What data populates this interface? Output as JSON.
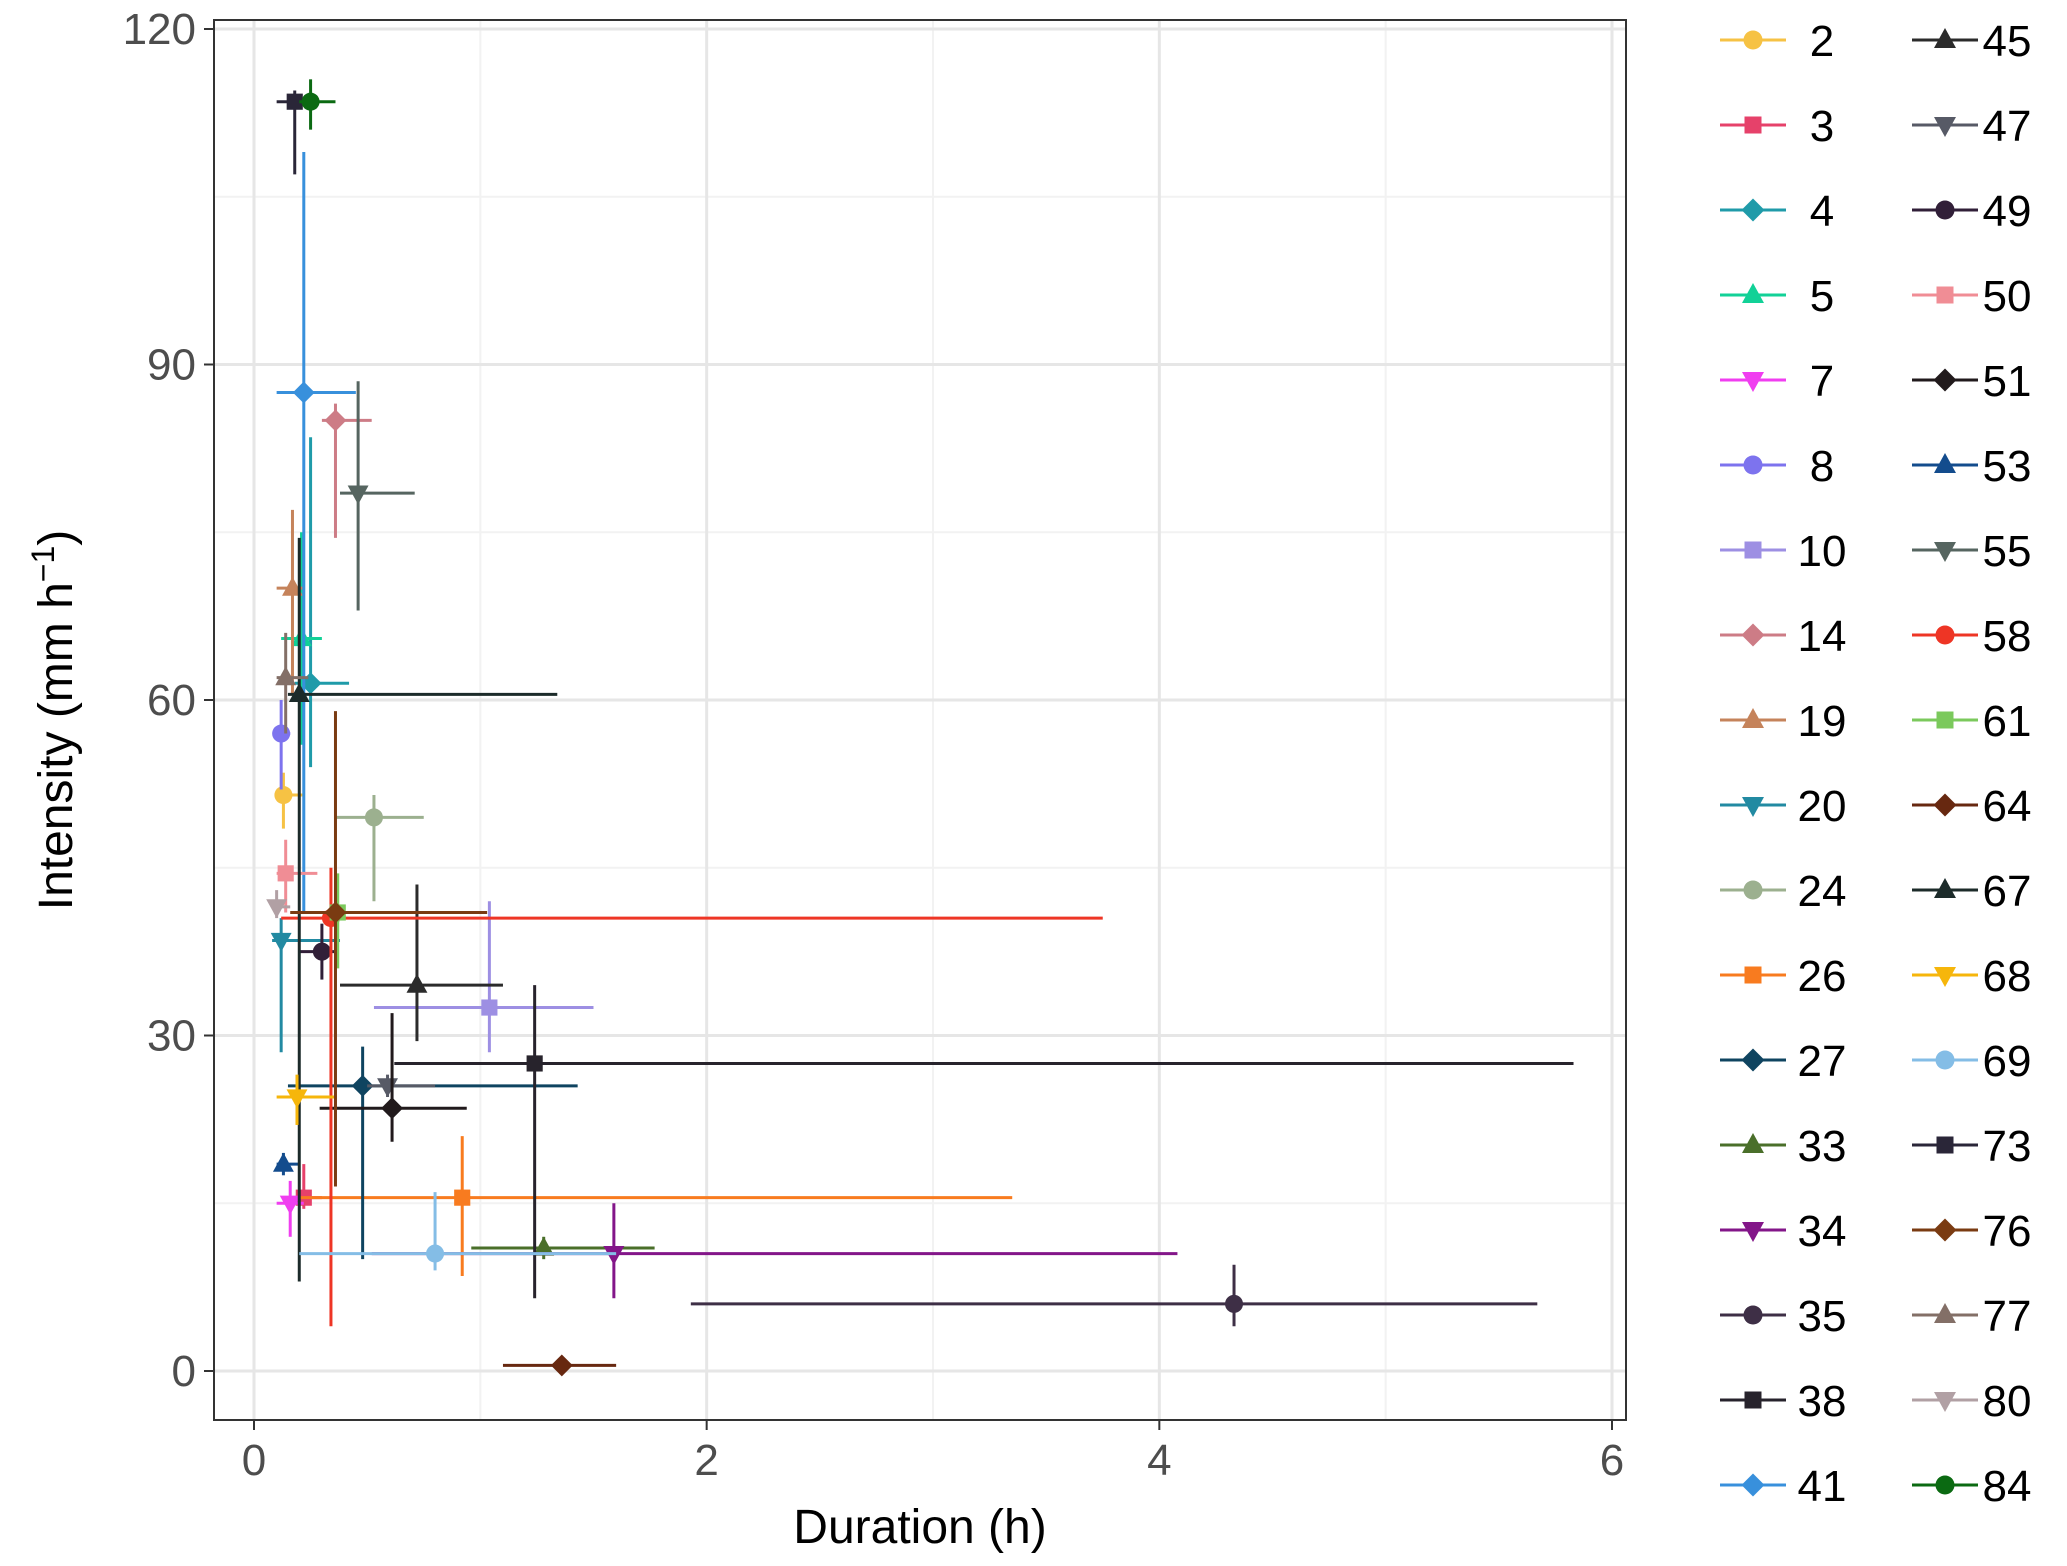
{
  "chart_data": {
    "type": "scatter",
    "title": "",
    "xlabel": "Duration (h)",
    "ylabel": "Intensity (mm h⁻¹)",
    "ylabel_base": "Intensity (mm h",
    "ylabel_sup": "−1",
    "ylabel_close": ")",
    "xlim": [
      -0.2,
      6.1
    ],
    "ylim": [
      -4,
      121
    ],
    "x_ticks": [
      0,
      2,
      4,
      6
    ],
    "y_ticks": [
      0,
      30,
      60,
      90,
      120
    ],
    "x_tick_labels": [
      "0",
      "2",
      "4",
      "6"
    ],
    "y_tick_labels": [
      "0",
      "30",
      "60",
      "90",
      "120"
    ],
    "x_minor_ticks": [
      1,
      3,
      5
    ],
    "y_minor_ticks": [
      15,
      45,
      75,
      105
    ],
    "grid": true,
    "legend_position": "right",
    "error_bars": "horizontal and vertical ranges around each point",
    "series": [
      {
        "name": "2",
        "color": "#f6c244",
        "marker": "circle",
        "x": 0.13,
        "y": 51.5,
        "xmin": 0.1,
        "xmax": 0.22,
        "ymin": 48.5,
        "ymax": 53.5
      },
      {
        "name": "3",
        "color": "#e6416a",
        "marker": "square",
        "x": 0.22,
        "y": 15.5,
        "xmin": 0.15,
        "xmax": 0.3,
        "ymin": 14.5,
        "ymax": 18.5
      },
      {
        "name": "4",
        "color": "#1f9ba9",
        "marker": "diamond",
        "x": 0.25,
        "y": 61.5,
        "xmin": 0.18,
        "xmax": 0.42,
        "ymin": 54.0,
        "ymax": 83.5
      },
      {
        "name": "5",
        "color": "#12d197",
        "marker": "triangle-up",
        "x": 0.21,
        "y": 65.5,
        "xmin": 0.12,
        "xmax": 0.3,
        "ymin": 56.0,
        "ymax": 75.0
      },
      {
        "name": "7",
        "color": "#f03ef0",
        "marker": "triangle-down",
        "x": 0.16,
        "y": 15.0,
        "xmin": 0.1,
        "xmax": 0.22,
        "ymin": 12.0,
        "ymax": 17.0
      },
      {
        "name": "8",
        "color": "#7d73ee",
        "marker": "circle",
        "x": 0.12,
        "y": 57.0,
        "xmin": 0.1,
        "xmax": 0.16,
        "ymin": 52.0,
        "ymax": 60.0
      },
      {
        "name": "10",
        "color": "#9d8fe3",
        "marker": "square",
        "x": 1.04,
        "y": 32.5,
        "xmin": 0.53,
        "xmax": 1.5,
        "ymin": 28.5,
        "ymax": 42.0
      },
      {
        "name": "14",
        "color": "#cd7c86",
        "marker": "diamond",
        "x": 0.36,
        "y": 85.0,
        "xmin": 0.3,
        "xmax": 0.52,
        "ymin": 74.5,
        "ymax": 86.5
      },
      {
        "name": "19",
        "color": "#c5835b",
        "marker": "triangle-up",
        "x": 0.17,
        "y": 70.0,
        "xmin": 0.1,
        "xmax": 0.22,
        "ymin": 60.5,
        "ymax": 77.0
      },
      {
        "name": "20",
        "color": "#228aa2",
        "marker": "triangle-down",
        "x": 0.12,
        "y": 38.5,
        "xmin": 0.08,
        "xmax": 0.38,
        "ymin": 28.5,
        "ymax": 40.5
      },
      {
        "name": "24",
        "color": "#9cb08f",
        "marker": "circle",
        "x": 0.53,
        "y": 49.5,
        "xmin": 0.36,
        "xmax": 0.75,
        "ymin": 42.0,
        "ymax": 51.5
      },
      {
        "name": "26",
        "color": "#f87b1f",
        "marker": "square",
        "x": 0.92,
        "y": 15.5,
        "xmin": 0.2,
        "xmax": 3.35,
        "ymin": 8.5,
        "ymax": 21.0
      },
      {
        "name": "27",
        "color": "#0f4460",
        "marker": "diamond",
        "x": 0.48,
        "y": 25.5,
        "xmin": 0.15,
        "xmax": 1.43,
        "ymin": 10.0,
        "ymax": 29.0
      },
      {
        "name": "33",
        "color": "#4a6f2a",
        "marker": "triangle-up",
        "x": 1.28,
        "y": 11.0,
        "xmin": 0.96,
        "xmax": 1.77,
        "ymin": 10.0,
        "ymax": 12.0
      },
      {
        "name": "34",
        "color": "#831689",
        "marker": "triangle-down",
        "x": 1.59,
        "y": 10.5,
        "xmin": 0.52,
        "xmax": 4.08,
        "ymin": 6.5,
        "ymax": 15.0
      },
      {
        "name": "35",
        "color": "#3e2f46",
        "marker": "circle",
        "x": 4.33,
        "y": 6.0,
        "xmin": 1.93,
        "xmax": 5.67,
        "ymin": 4.0,
        "ymax": 9.5
      },
      {
        "name": "38",
        "color": "#27232c",
        "marker": "square",
        "x": 1.24,
        "y": 27.5,
        "xmin": 0.62,
        "xmax": 5.83,
        "ymin": 6.5,
        "ymax": 34.5
      },
      {
        "name": "41",
        "color": "#3890dc",
        "marker": "diamond",
        "x": 0.22,
        "y": 87.5,
        "xmin": 0.1,
        "xmax": 0.45,
        "ymin": 41.0,
        "ymax": 109.0
      },
      {
        "name": "45",
        "color": "#2b2b2b",
        "marker": "triangle-up",
        "x": 0.72,
        "y": 34.5,
        "xmin": 0.38,
        "xmax": 1.1,
        "ymin": 29.5,
        "ymax": 43.5
      },
      {
        "name": "47",
        "color": "#575a66",
        "marker": "triangle-down",
        "x": 0.59,
        "y": 25.5,
        "xmin": 0.5,
        "xmax": 0.8,
        "ymin": 24.5,
        "ymax": 26.5
      },
      {
        "name": "49",
        "color": "#311f38",
        "marker": "circle",
        "x": 0.3,
        "y": 37.5,
        "xmin": 0.2,
        "xmax": 0.36,
        "ymin": 35.0,
        "ymax": 40.0
      },
      {
        "name": "50",
        "color": "#f08d95",
        "marker": "square",
        "x": 0.14,
        "y": 44.5,
        "xmin": 0.1,
        "xmax": 0.28,
        "ymin": 41.0,
        "ymax": 47.5
      },
      {
        "name": "51",
        "color": "#211a1c",
        "marker": "diamond",
        "x": 0.61,
        "y": 23.5,
        "xmin": 0.29,
        "xmax": 0.94,
        "ymin": 20.5,
        "ymax": 32.0
      },
      {
        "name": "53",
        "color": "#134c8d",
        "marker": "triangle-up",
        "x": 0.13,
        "y": 18.5,
        "xmin": 0.1,
        "xmax": 0.2,
        "ymin": 17.5,
        "ymax": 19.5
      },
      {
        "name": "55",
        "color": "#566560",
        "marker": "triangle-down",
        "x": 0.46,
        "y": 78.5,
        "xmin": 0.38,
        "xmax": 0.71,
        "ymin": 68.0,
        "ymax": 88.5
      },
      {
        "name": "58",
        "color": "#ee3525",
        "marker": "circle",
        "x": 0.34,
        "y": 40.5,
        "xmin": 0.12,
        "xmax": 3.75,
        "ymin": 4.0,
        "ymax": 45.0
      },
      {
        "name": "61",
        "color": "#7bc95c",
        "marker": "square",
        "x": 0.37,
        "y": 41.0,
        "xmin": 0.3,
        "xmax": 0.5,
        "ymin": 36.0,
        "ymax": 44.5
      },
      {
        "name": "64",
        "color": "#672810",
        "marker": "diamond",
        "x": 1.36,
        "y": 0.5,
        "xmin": 1.1,
        "xmax": 1.6,
        "ymin": 0.0,
        "ymax": 1.0
      },
      {
        "name": "67",
        "color": "#1c2b2a",
        "marker": "triangle-up",
        "x": 0.2,
        "y": 60.5,
        "xmin": 0.15,
        "xmax": 1.34,
        "ymin": 8.0,
        "ymax": 74.5
      },
      {
        "name": "68",
        "color": "#f6b60b",
        "marker": "triangle-down",
        "x": 0.19,
        "y": 24.5,
        "xmin": 0.1,
        "xmax": 0.36,
        "ymin": 22.0,
        "ymax": 26.5
      },
      {
        "name": "69",
        "color": "#84bde6",
        "marker": "circle",
        "x": 0.8,
        "y": 10.5,
        "xmin": 0.2,
        "xmax": 1.6,
        "ymin": 9.0,
        "ymax": 16.0
      },
      {
        "name": "73",
        "color": "#2a2638",
        "marker": "square",
        "x": 0.18,
        "y": 113.5,
        "xmin": 0.1,
        "xmax": 0.22,
        "ymin": 107.0,
        "ymax": 114.5
      },
      {
        "name": "76",
        "color": "#7a3b12",
        "marker": "diamond",
        "x": 0.36,
        "y": 41.0,
        "xmin": 0.16,
        "xmax": 1.03,
        "ymin": 16.5,
        "ymax": 59.0
      },
      {
        "name": "77",
        "color": "#836f67",
        "marker": "triangle-up",
        "x": 0.14,
        "y": 62.0,
        "xmin": 0.1,
        "xmax": 0.24,
        "ymin": 57.0,
        "ymax": 66.0
      },
      {
        "name": "80",
        "color": "#b1a0a4",
        "marker": "triangle-down",
        "x": 0.1,
        "y": 41.5,
        "xmin": 0.08,
        "xmax": 0.16,
        "ymin": 40.5,
        "ymax": 43.0
      },
      {
        "name": "84",
        "color": "#0b6a12",
        "marker": "circle",
        "x": 0.25,
        "y": 113.5,
        "xmin": 0.2,
        "xmax": 0.36,
        "ymin": 111.0,
        "ymax": 115.5
      }
    ]
  }
}
